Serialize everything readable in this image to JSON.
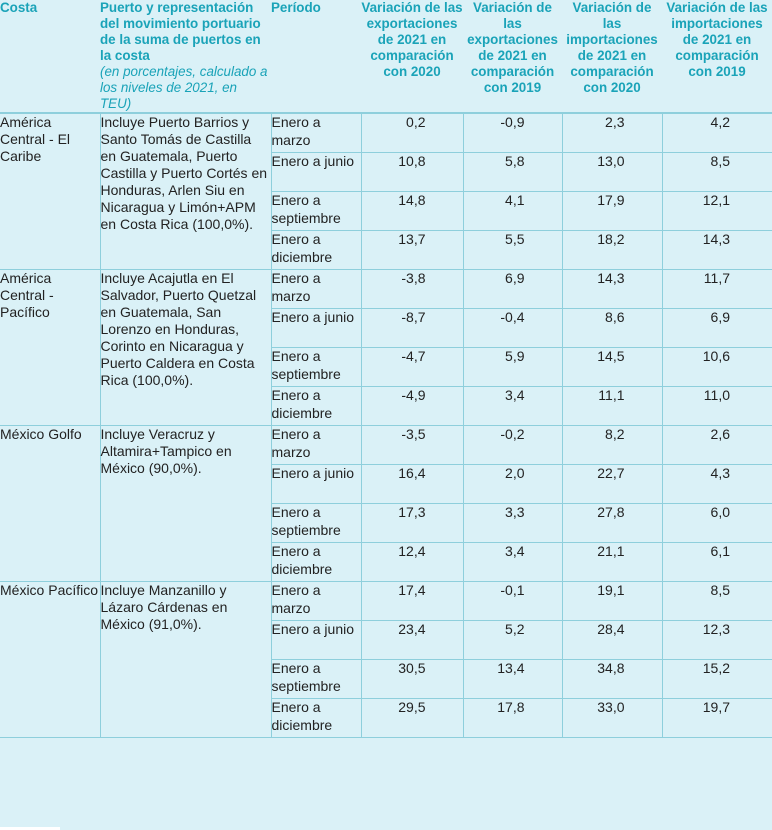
{
  "header": {
    "costa": "Costa",
    "puerto_bold": "Puerto y representación del movimiento portuario de la suma de puertos en la costa",
    "puerto_italic": "(en porcentajes, calculado a los niveles de 2021, en TEU)",
    "periodo": "Período",
    "var_exp_2020": "Variación de las exportaciones de 2021 en comparación con 2020",
    "var_exp_2019": "Variación de las exportaciones de 2021 en comparación con 2019",
    "var_imp_2020": "Variación de las importaciones de 2021 en comparación con 2020",
    "var_imp_2019": "Variación de las importaciones de 2021 en comparación con 2019"
  },
  "groups": [
    {
      "costa": "América Central - El Caribe",
      "puerto": "Incluye Puerto Barrios y Santo Tomás de Castilla en Guatemala, Puerto Castilla y Puerto Cortés en Honduras, Arlen Siu en Nicaragua y Limón+APM en Costa Rica (100,0%).",
      "rows": [
        {
          "periodo": "Enero a marzo",
          "v1": "0,2",
          "v2": "-0,9",
          "v3": "2,3",
          "v4": "4,2"
        },
        {
          "periodo": "Enero a junio",
          "v1": "10,8",
          "v2": "5,8",
          "v3": "13,0",
          "v4": "8,5"
        },
        {
          "periodo": "Enero a septiembre",
          "v1": "14,8",
          "v2": "4,1",
          "v3": "17,9",
          "v4": "12,1"
        },
        {
          "periodo": "Enero a diciembre",
          "v1": "13,7",
          "v2": "5,5",
          "v3": "18,2",
          "v4": "14,3"
        }
      ]
    },
    {
      "costa": "América Central - Pacífico",
      "puerto": "Incluye Acajutla en El Salvador, Puerto Quetzal en Guatemala, San Lorenzo en Honduras, Corinto en Nicaragua y Puerto Caldera en Costa Rica (100,0%).",
      "rows": [
        {
          "periodo": "Enero a marzo",
          "v1": "-3,8",
          "v2": "6,9",
          "v3": "14,3",
          "v4": "11,7"
        },
        {
          "periodo": "Enero a junio",
          "v1": "-8,7",
          "v2": "-0,4",
          "v3": "8,6",
          "v4": "6,9"
        },
        {
          "periodo": "Enero a septiembre",
          "v1": "-4,7",
          "v2": "5,9",
          "v3": "14,5",
          "v4": "10,6"
        },
        {
          "periodo": "Enero a diciembre",
          "v1": "-4,9",
          "v2": "3,4",
          "v3": "11,1",
          "v4": "11,0"
        }
      ]
    },
    {
      "costa": "México Golfo",
      "puerto": "Incluye Veracruz y Altamira+Tampico en México (90,0%).",
      "rows": [
        {
          "periodo": "Enero a marzo",
          "v1": "-3,5",
          "v2": "-0,2",
          "v3": "8,2",
          "v4": "2,6"
        },
        {
          "periodo": "Enero a junio",
          "v1": "16,4",
          "v2": "2,0",
          "v3": "22,7",
          "v4": "4,3"
        },
        {
          "periodo": "Enero a septiembre",
          "v1": "17,3",
          "v2": "3,3",
          "v3": "27,8",
          "v4": "6,0"
        },
        {
          "periodo": "Enero a diciembre",
          "v1": "12,4",
          "v2": "3,4",
          "v3": "21,1",
          "v4": "6,1"
        }
      ]
    },
    {
      "costa": "México Pacífico",
      "puerto": "Incluye Manzanillo y Lázaro Cárdenas en México (91,0%).",
      "rows": [
        {
          "periodo": "Enero a marzo",
          "v1": "17,4",
          "v2": "-0,1",
          "v3": "19,1",
          "v4": "8,5"
        },
        {
          "periodo": "Enero a junio",
          "v1": "23,4",
          "v2": "5,2",
          "v3": "28,4",
          "v4": "12,3"
        },
        {
          "periodo": "Enero a septiembre",
          "v1": "30,5",
          "v2": "13,4",
          "v3": "34,8",
          "v4": "15,2"
        },
        {
          "periodo": "Enero a diciembre",
          "v1": "29,5",
          "v2": "17,8",
          "v3": "33,0",
          "v4": "19,7"
        }
      ]
    }
  ]
}
